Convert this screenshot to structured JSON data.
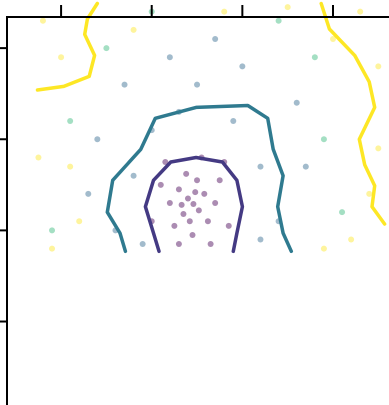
{
  "chart_data": {
    "type": "scatter",
    "xlim": [
      -0.674,
      3.618
    ],
    "ylim": [
      -0.916,
      3.528
    ],
    "xticks": [
      0,
      1,
      2,
      3
    ],
    "yticks": [
      0,
      1,
      2,
      3
    ],
    "series": [
      {
        "color": "#440154",
        "x": [
          1.46,
          1.4,
          1.52,
          1.35,
          1.58,
          1.3,
          1.62,
          1.25,
          1.5,
          1.7,
          1.2,
          1.45,
          1.38,
          1.75,
          1.1,
          1.55,
          1.0,
          1.85,
          1.3,
          1.65,
          1.15,
          1.8,
          1.42,
          1.48,
          1.33
        ],
        "y": [
          1.29,
          1.35,
          1.22,
          1.18,
          1.4,
          1.45,
          1.1,
          1.05,
          1.55,
          1.3,
          1.3,
          0.95,
          1.62,
          1.55,
          1.5,
          1.8,
          1.1,
          1.05,
          0.85,
          0.85,
          1.75,
          1.75,
          1.1,
          1.42,
          1.28
        ]
      },
      {
        "color": "#31688e",
        "x": [
          0.8,
          2.2,
          1.0,
          1.9,
          0.6,
          2.4,
          1.5,
          0.4,
          2.6,
          1.2,
          0.9,
          2.2,
          0.3,
          2.7,
          1.7,
          0.7,
          2.0,
          1.3
        ],
        "y": [
          1.6,
          1.7,
          2.1,
          2.2,
          1.0,
          1.1,
          2.6,
          2.0,
          2.4,
          2.9,
          0.85,
          0.9,
          1.4,
          1.7,
          3.1,
          2.6,
          2.8,
          2.3
        ]
      },
      {
        "color": "#35b779",
        "x": [
          0.1,
          2.9,
          0.5,
          2.4,
          3.1,
          -0.1,
          1.0,
          2.8
        ],
        "y": [
          2.2,
          2.0,
          3.0,
          3.3,
          1.2,
          1.0,
          3.4,
          2.9
        ]
      },
      {
        "color": "#fde725",
        "x": [
          -0.2,
          0.0,
          -0.25,
          0.2,
          3.3,
          3.5,
          3.2,
          3.5,
          2.5,
          0.8,
          -0.1,
          3.0,
          1.8,
          3.4,
          0.1,
          2.9
        ],
        "y": [
          3.3,
          2.9,
          1.8,
          1.1,
          3.4,
          2.8,
          0.9,
          1.9,
          3.45,
          3.2,
          0.8,
          3.1,
          3.4,
          1.4,
          1.7,
          0.8
        ]
      }
    ],
    "contours": [
      {
        "color": "#fde725",
        "x": [
          -0.26,
          0.03,
          0.31,
          0.37,
          0.26,
          0.29,
          0.4
        ],
        "y": [
          2.54,
          2.58,
          2.69,
          2.92,
          3.15,
          3.32,
          3.49
        ]
      },
      {
        "color": "#fde725",
        "x": [
          2.87,
          2.96,
          3.24,
          3.4,
          3.46,
          3.29,
          3.35,
          3.46,
          3.43,
          3.57
        ],
        "y": [
          3.49,
          3.21,
          2.92,
          2.63,
          2.35,
          2.0,
          1.72,
          1.49,
          1.26,
          1.07
        ]
      },
      {
        "color": "#2f7a8f",
        "x": [
          0.71,
          0.65,
          0.51,
          0.57,
          0.88,
          1.04,
          1.49,
          2.06,
          2.28,
          2.34,
          2.45,
          2.39,
          2.45,
          2.54
        ],
        "y": [
          0.77,
          0.97,
          1.2,
          1.55,
          1.89,
          2.23,
          2.35,
          2.37,
          2.23,
          1.89,
          1.6,
          1.26,
          0.97,
          0.77
        ]
      },
      {
        "color": "#443a83",
        "x": [
          1.08,
          1.02,
          0.93,
          1.02,
          1.21,
          1.49,
          1.78,
          1.94,
          2.0,
          1.94,
          1.9
        ],
        "y": [
          0.77,
          0.97,
          1.26,
          1.55,
          1.75,
          1.8,
          1.75,
          1.55,
          1.26,
          0.97,
          0.77
        ]
      }
    ]
  }
}
